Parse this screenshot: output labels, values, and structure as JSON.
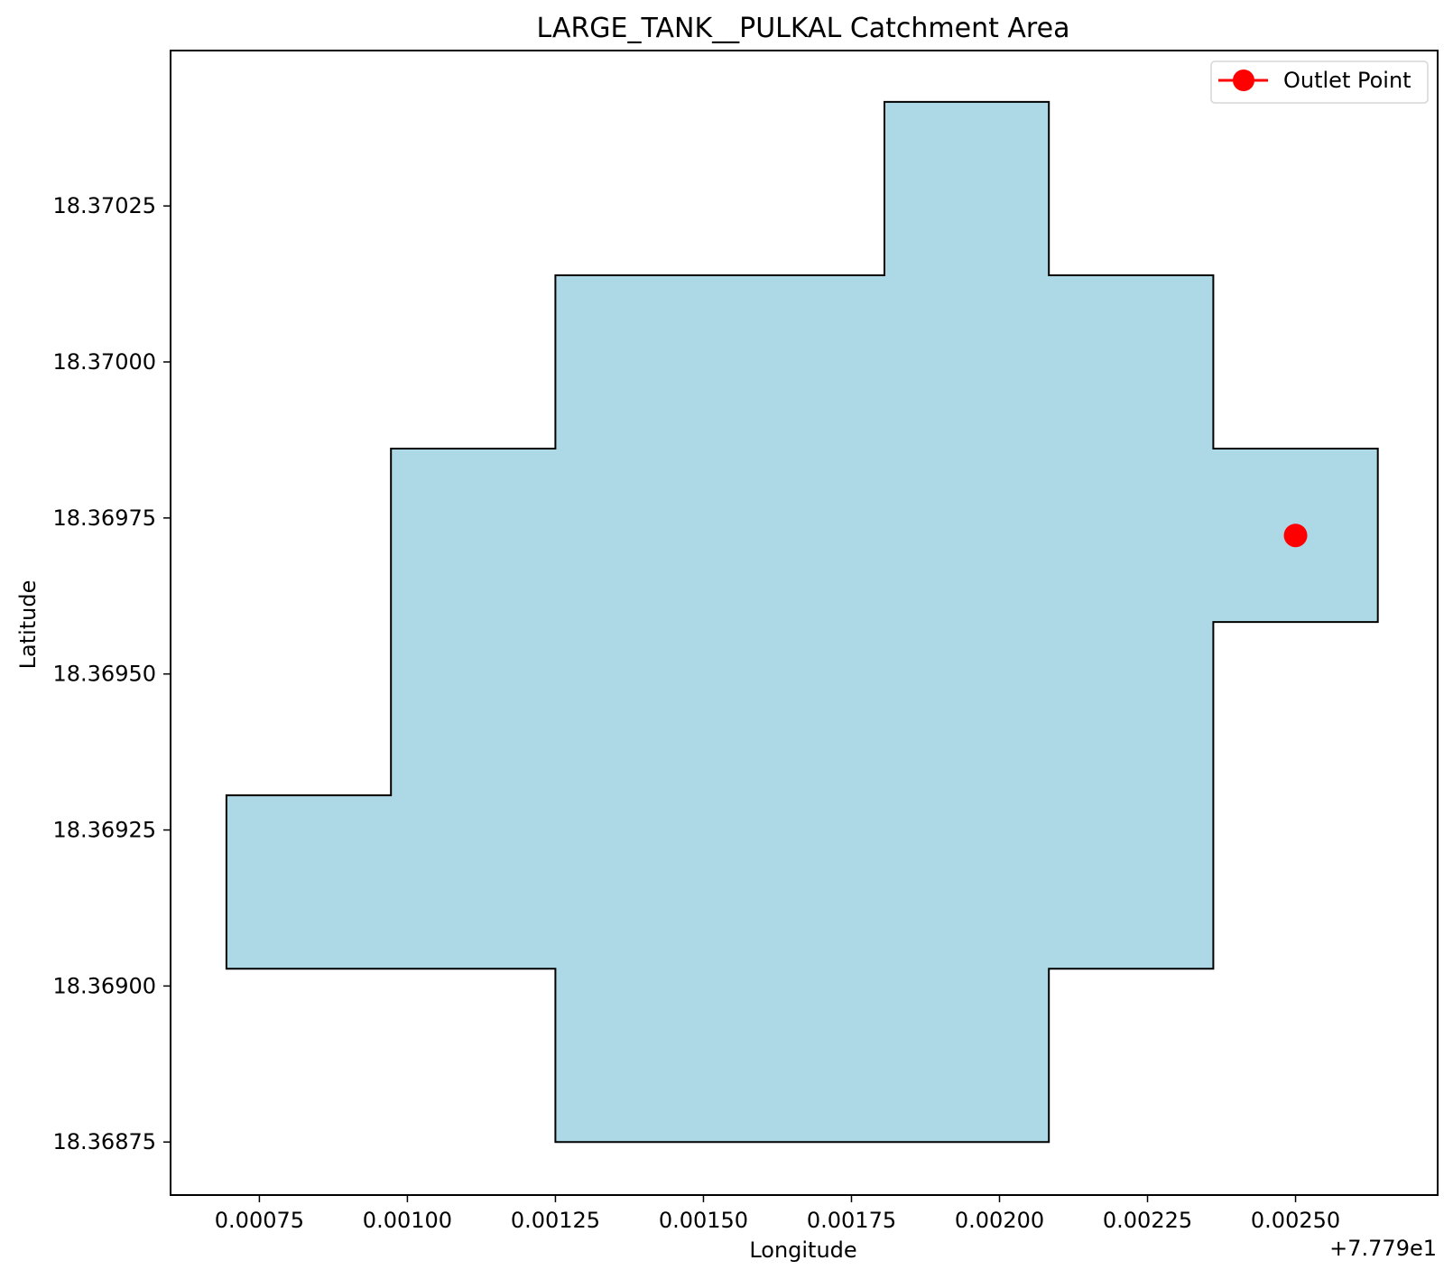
{
  "chart_data": {
    "type": "area",
    "title": "LARGE_TANK__PULKAL Catchment Area",
    "xlabel": "Longitude",
    "ylabel": "Latitude",
    "x_offset_label": "+7.779e1",
    "xlim": [
      0.0006,
      0.00274
    ],
    "ylim": [
      18.368665,
      18.370499
    ],
    "xticks": [
      0.00075,
      0.001,
      0.00125,
      0.0015,
      0.00175,
      0.002,
      0.00225,
      0.0025
    ],
    "xtick_labels": [
      "0.00075",
      "0.00100",
      "0.00125",
      "0.00150",
      "0.00175",
      "0.00200",
      "0.00225",
      "0.00250"
    ],
    "yticks": [
      18.36875,
      18.369,
      18.36925,
      18.3695,
      18.36975,
      18.37,
      18.37025
    ],
    "ytick_labels": [
      "18.36875",
      "18.36900",
      "18.36925",
      "18.36950",
      "18.36975",
      "18.37000",
      "18.37025"
    ],
    "polygon": {
      "fill": "#add8e6",
      "edge": "#000000",
      "points": [
        [
          0.0018056,
          18.3704167
        ],
        [
          0.0020833,
          18.3704167
        ],
        [
          0.0020833,
          18.3701389
        ],
        [
          0.0023611,
          18.3701389
        ],
        [
          0.0023611,
          18.3698611
        ],
        [
          0.0026389,
          18.3698611
        ],
        [
          0.0026389,
          18.3695833
        ],
        [
          0.0023611,
          18.3695833
        ],
        [
          0.0023611,
          18.3690278
        ],
        [
          0.0020833,
          18.3690278
        ],
        [
          0.0020833,
          18.36875
        ],
        [
          0.00125,
          18.36875
        ],
        [
          0.00125,
          18.3690278
        ],
        [
          0.0006944,
          18.3690278
        ],
        [
          0.0006944,
          18.3693056
        ],
        [
          0.0009722,
          18.3693056
        ],
        [
          0.0009722,
          18.3698611
        ],
        [
          0.00125,
          18.3698611
        ],
        [
          0.00125,
          18.3701389
        ],
        [
          0.0018056,
          18.3701389
        ]
      ]
    },
    "outlet_point": {
      "name": "Outlet Point",
      "x": 0.0025,
      "y": 18.369722,
      "color": "#ff0000"
    },
    "legend": {
      "placement": "upper right"
    },
    "grid": false
  }
}
